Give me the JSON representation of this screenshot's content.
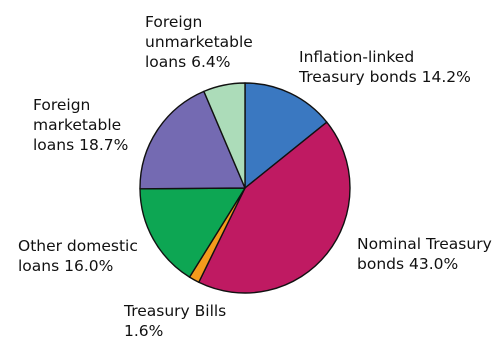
{
  "chart_data": {
    "type": "pie",
    "title": "",
    "legend": "none",
    "slices": [
      {
        "name": "Inflation-linked Treasury bonds",
        "value": 14.2,
        "label_lines": [
          "Inflation-linked",
          "Treasury bonds 14.2%"
        ],
        "color": "#3a78c1"
      },
      {
        "name": "Nominal Treasury bonds",
        "value": 43.0,
        "label_lines": [
          "Nominal Treasury",
          "bonds 43.0%"
        ],
        "color": "#bf1a62"
      },
      {
        "name": "Treasury Bills",
        "value": 1.6,
        "label_lines": [
          "Treasury Bills",
          "1.6%"
        ],
        "color": "#f39a1c"
      },
      {
        "name": "Other domestic loans",
        "value": 16.0,
        "label_lines": [
          "Other domestic",
          "loans 16.0%"
        ],
        "color": "#0da653"
      },
      {
        "name": "Foreign marketable loans",
        "value": 18.7,
        "label_lines": [
          "Foreign",
          "marketable",
          "loans 18.7%"
        ],
        "color": "#746ab2"
      },
      {
        "name": "Foreign unmarketable loans",
        "value": 6.4,
        "label_lines": [
          "Foreign",
          "unmarketable",
          "loans 6.4%"
        ],
        "color": "#acdcb9"
      }
    ]
  }
}
